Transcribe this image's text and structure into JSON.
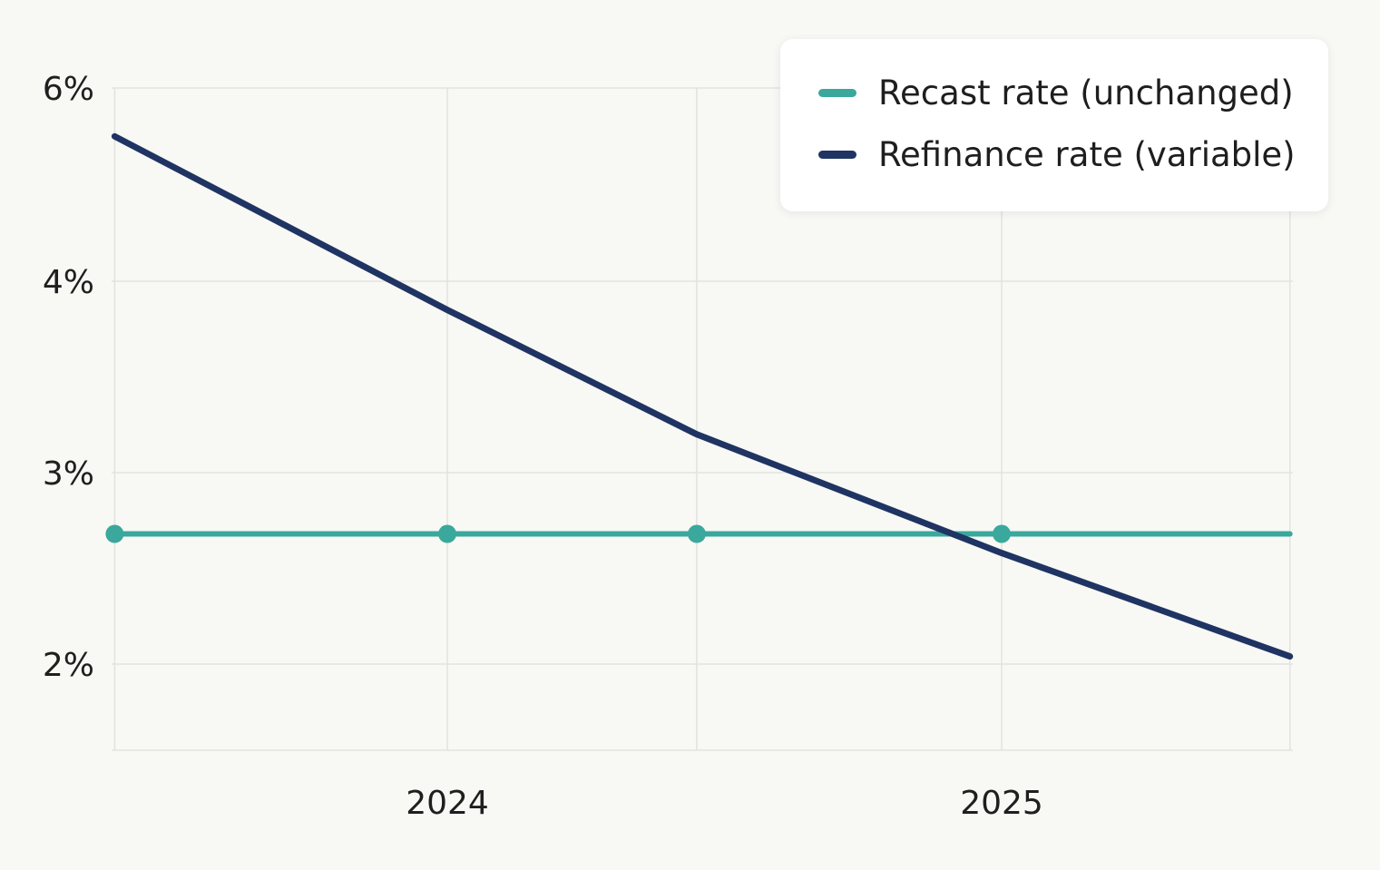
{
  "chart_data": {
    "type": "line",
    "x": [
      2023.4,
      2024,
      2024.45,
      2025,
      2025.52
    ],
    "xticks": [
      2024,
      2025
    ],
    "xtick_labels": [
      "2024",
      "2025"
    ],
    "yticks": [
      6,
      4,
      3,
      2
    ],
    "ytick_labels": [
      "6%",
      "4%",
      "3%",
      "2%"
    ],
    "grid": true,
    "legend_position": "top-right",
    "series": [
      {
        "name": "Recast rate (unchanged)",
        "color": "#3aa89c",
        "markers": true,
        "x": [
          2023.4,
          2024,
          2024.45,
          2025,
          2025.52
        ],
        "values": [
          2.68,
          2.68,
          2.68,
          2.68,
          2.68
        ]
      },
      {
        "name": "Refinance rate (variable)",
        "color": "#1f3462",
        "markers": false,
        "x": [
          2023.4,
          2024,
          2024.45,
          2025,
          2025.52
        ],
        "values": [
          5.5,
          3.85,
          3.2,
          2.58,
          2.04
        ]
      }
    ]
  }
}
